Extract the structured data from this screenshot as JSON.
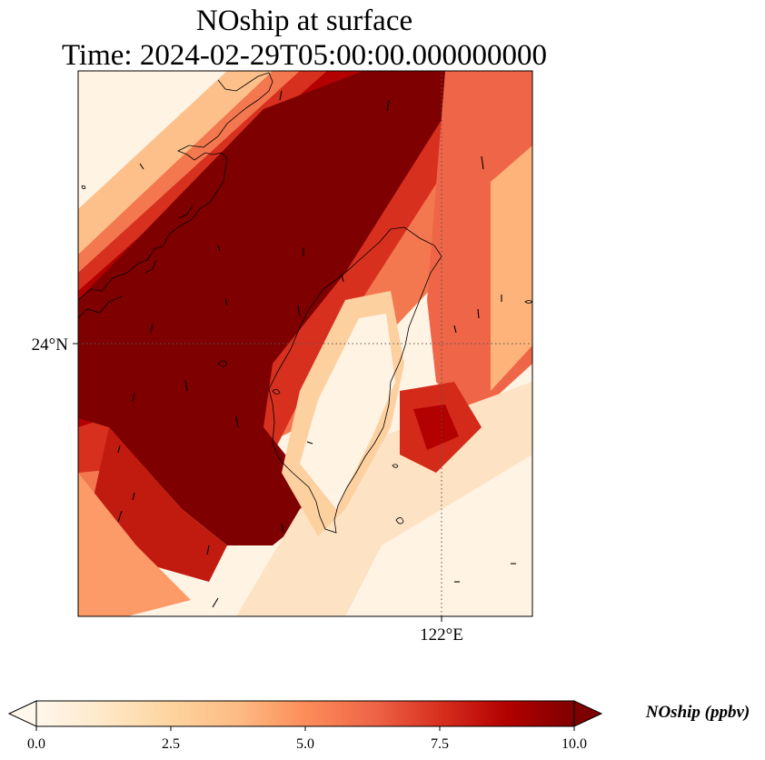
{
  "title": {
    "line1": "NOship at surface",
    "line2": "Time: 2024-02-29T05:00:00.000000000"
  },
  "map": {
    "lat_ticks": [
      {
        "value": 24,
        "label": "24°N"
      }
    ],
    "lon_ticks": [
      {
        "value": 122,
        "label": "122°E"
      }
    ],
    "gridlines": "dotted"
  },
  "colorbar": {
    "label": "NOship (ppbv)",
    "vmin": 0,
    "vmax": 10,
    "extend": "both",
    "ticks": [
      {
        "value": 0,
        "label": "0.0"
      },
      {
        "value": 2.5,
        "label": "2.5"
      },
      {
        "value": 5,
        "label": "5.0"
      },
      {
        "value": 7.5,
        "label": "7.5"
      },
      {
        "value": 10,
        "label": "10.0"
      }
    ],
    "colormap": [
      "#fff7ec",
      "#fee8c8",
      "#fdd49e",
      "#fdbb84",
      "#fc8d59",
      "#ef6548",
      "#d7301f",
      "#b30000",
      "#7f0000"
    ]
  }
}
